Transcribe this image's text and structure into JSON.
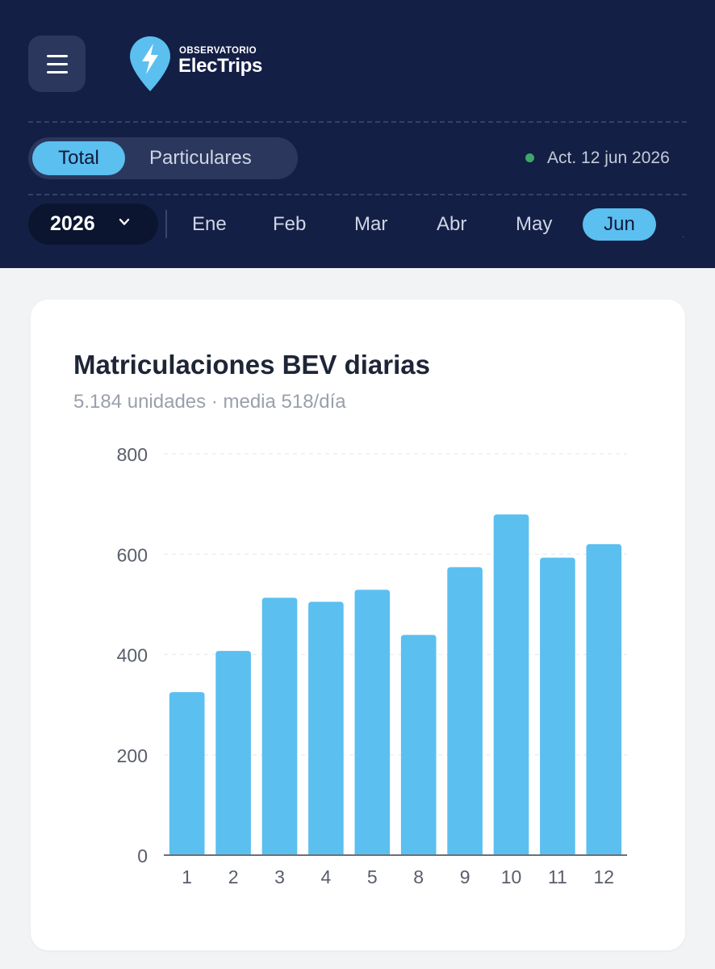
{
  "header": {
    "logo_small": "OBSERVATORIO",
    "logo_big": "ElecTrips",
    "segments": [
      "Total",
      "Particulares"
    ],
    "active_segment": "Total",
    "status": "Act. 12 jun 2026",
    "year": "2026",
    "months": [
      "Ene",
      "Feb",
      "Mar",
      "Abr",
      "May",
      "Jun"
    ],
    "active_month": "Jun"
  },
  "card": {
    "title": "Matriculaciones BEV diarias",
    "subtitle": "5.184 unidades · media 518/día"
  },
  "colors": {
    "header_bg": "#141f45",
    "accent": "#5bbff0",
    "status_green": "#3fa66b",
    "bar": "#5bbff0"
  },
  "icons": [
    "hamburger-menu-icon",
    "lightning-pin-logo-icon",
    "chevron-down-icon"
  ],
  "chart_data": {
    "type": "bar",
    "title": "Matriculaciones BEV diarias",
    "categories": [
      "1",
      "2",
      "3",
      "4",
      "5",
      "8",
      "9",
      "10",
      "11",
      "12"
    ],
    "values": [
      325,
      407,
      513,
      505,
      529,
      439,
      574,
      679,
      593,
      620
    ],
    "ylim": [
      0,
      800
    ],
    "yticks": [
      0,
      200,
      400,
      600,
      800
    ],
    "grid": true,
    "legend": "none"
  }
}
